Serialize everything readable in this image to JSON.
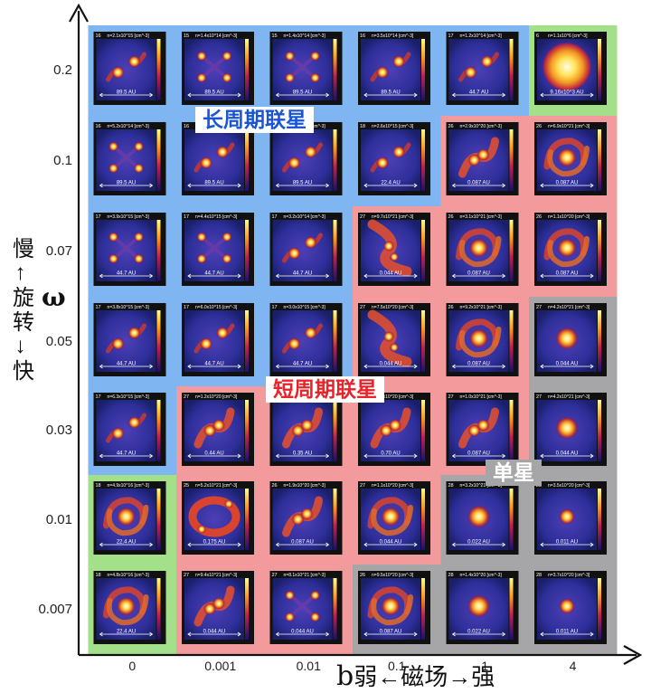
{
  "axes": {
    "y_title": "慢←旋转→快",
    "y_symbol": "ω",
    "x_title": "弱←磁场→强",
    "x_symbol": "b",
    "y_ticks": [
      "0.2",
      "0.1",
      "0.07",
      "0.05",
      "0.03",
      "0.01",
      "0.007"
    ],
    "x_ticks": [
      "0",
      "0.001",
      "0.01",
      "0.1",
      "1",
      "4"
    ]
  },
  "regions": {
    "long_period": {
      "label": "长周期联星",
      "color": "#1a55d6",
      "fill": "#7fb6f2"
    },
    "short_period": {
      "label": "短周期联星",
      "color": "#e8242a",
      "fill": "#f39a9c"
    },
    "single": {
      "label": "单星",
      "color": "#ffffff",
      "fill": "#a6a6a8"
    },
    "other": {
      "fill": "#a4df8a"
    }
  },
  "grid": [
    {
      "row": "0.2",
      "cells": [
        {
          "region": "long_period",
          "morph": "binary-long",
          "num": "16",
          "density": "n=2.1x10^15 [cm^-3]",
          "scale": "89.5 AU"
        },
        {
          "region": "long_period",
          "morph": "multiple",
          "num": "15",
          "density": "n=1.4x10^14 [cm^-3]",
          "scale": "89.5 AU"
        },
        {
          "region": "long_period",
          "morph": "multiple",
          "num": "15",
          "density": "n=1.4x10^14 [cm^-3]",
          "scale": "89.5 AU"
        },
        {
          "region": "long_period",
          "morph": "binary-long",
          "num": "16",
          "density": "n=3.5x10^14 [cm^-3]",
          "scale": "89.5 AU"
        },
        {
          "region": "long_period",
          "morph": "binary-long",
          "num": "17",
          "density": "n=1.2x10^14 [cm^-3]",
          "scale": "44.7 AU"
        },
        {
          "region": "other",
          "morph": "core-big",
          "num": "6",
          "density": "n=1.1x10^6 [cm^-3]",
          "scale": "9.16x10^3 AU"
        }
      ]
    },
    {
      "row": "0.1",
      "cells": [
        {
          "region": "long_period",
          "morph": "multiple",
          "num": "16",
          "density": "n=5.2x10^14 [cm^-3]",
          "scale": "89.5 AU"
        },
        {
          "region": "long_period",
          "morph": "binary-long",
          "num": "16",
          "density": "n=4.0x10^15 [cm^-3]",
          "scale": "89.5 AU"
        },
        {
          "region": "long_period",
          "morph": "binary-long",
          "num": "16",
          "density": "n=8.9x10^14 [cm^-3]",
          "scale": "89.5 AU"
        },
        {
          "region": "long_period",
          "morph": "binary-long",
          "num": "18",
          "density": "n=2.6x10^15 [cm^-3]",
          "scale": "22.4 AU"
        },
        {
          "region": "short_period",
          "morph": "binary-short",
          "num": "26",
          "density": "n=2.9x10^20 [cm^-3]",
          "scale": "0.087 AU"
        },
        {
          "region": "short_period",
          "morph": "spiral",
          "num": "26",
          "density": "n=6.9x10^21 [cm^-3]",
          "scale": "0.087 AU"
        }
      ]
    },
    {
      "row": "0.07",
      "cells": [
        {
          "region": "long_period",
          "morph": "multiple",
          "num": "17",
          "density": "n=3.9x10^15 [cm^-3]",
          "scale": "44.7 AU"
        },
        {
          "region": "long_period",
          "morph": "multiple",
          "num": "17",
          "density": "n=4.4x10^15 [cm^-3]",
          "scale": "44.7 AU"
        },
        {
          "region": "long_period",
          "morph": "binary-long",
          "num": "17",
          "density": "n=3.2x10^14 [cm^-3]",
          "scale": "44.7 AU"
        },
        {
          "region": "short_period",
          "morph": "filament",
          "num": "27",
          "density": "n=9.7x10^21 [cm^-3]",
          "scale": "0.044 AU"
        },
        {
          "region": "short_period",
          "morph": "spiral",
          "num": "26",
          "density": "n=3.1x10^21 [cm^-3]",
          "scale": "0.087 AU"
        },
        {
          "region": "short_period",
          "morph": "spiral",
          "num": "26",
          "density": "n=1.1x10^20 [cm^-3]",
          "scale": "0.087 AU"
        }
      ]
    },
    {
      "row": "0.05",
      "cells": [
        {
          "region": "long_period",
          "morph": "binary-long",
          "num": "17",
          "density": "n=3.8x10^15 [cm^-3]",
          "scale": "44.7 AU"
        },
        {
          "region": "long_period",
          "morph": "binary-long",
          "num": "17",
          "density": "n=6.0x10^15 [cm^-3]",
          "scale": "44.7 AU"
        },
        {
          "region": "long_period",
          "morph": "binary-long",
          "num": "17",
          "density": "n=3.0x10^15 [cm^-3]",
          "scale": "44.7 AU"
        },
        {
          "region": "short_period",
          "morph": "filament",
          "num": "27",
          "density": "n=7.5x10^20 [cm^-3]",
          "scale": "0.044 AU"
        },
        {
          "region": "short_period",
          "morph": "spiral",
          "num": "26",
          "density": "n=9.2x10^21 [cm^-3]",
          "scale": "0.087 AU"
        },
        {
          "region": "single",
          "morph": "core",
          "num": "27",
          "density": "n=4.2x10^21 [cm^-3]",
          "scale": "0.044 AU"
        }
      ]
    },
    {
      "row": "0.03",
      "cells": [
        {
          "region": "long_period",
          "morph": "binary-long",
          "num": "17",
          "density": "n=6.3x10^15 [cm^-3]",
          "scale": "44.7 AU"
        },
        {
          "region": "short_period",
          "morph": "binary-short",
          "num": "27",
          "density": "n=1.2x10^20 [cm^-3]",
          "scale": "0.44 AU"
        },
        {
          "region": "short_period",
          "morph": "binary-short",
          "num": "27",
          "density": "n=1.0x10^20 [cm^-3]",
          "scale": "0.35 AU"
        },
        {
          "region": "short_period",
          "morph": "binary-short",
          "num": "27",
          "density": "n=3.6x10^20 [cm^-3]",
          "scale": "0.70 AU"
        },
        {
          "region": "short_period",
          "morph": "binary-short",
          "num": "27",
          "density": "n=1.0x10^21 [cm^-3]",
          "scale": "0.087 AU"
        },
        {
          "region": "single",
          "morph": "core",
          "num": "27",
          "density": "n=4.2x10^21 [cm^-3]",
          "scale": "0.044 AU"
        }
      ]
    },
    {
      "row": "0.01",
      "cells": [
        {
          "region": "other",
          "morph": "spiral",
          "num": "18",
          "density": "n=4.9x10^16 [cm^-3]",
          "scale": "22.4 AU"
        },
        {
          "region": "short_period",
          "morph": "ring",
          "num": "25",
          "density": "n=5.2x10^21 [cm^-3]",
          "scale": "0.175 AU"
        },
        {
          "region": "short_period",
          "morph": "binary-short",
          "num": "26",
          "density": "n=1.9x10^20 [cm^-3]",
          "scale": "0.087 AU"
        },
        {
          "region": "short_period",
          "morph": "spiral",
          "num": "27",
          "density": "n=1.1x10^20 [cm^-3]",
          "scale": "0.044 AU"
        },
        {
          "region": "single",
          "morph": "core",
          "num": "28",
          "density": "n=3.2x10^21 [cm^-3]",
          "scale": "0.022 AU"
        },
        {
          "region": "single",
          "morph": "core-small",
          "num": "28",
          "density": "n=3.5x10^20 [cm^-3]",
          "scale": "0.011 AU"
        }
      ]
    },
    {
      "row": "0.007",
      "cells": [
        {
          "region": "other",
          "morph": "spiral",
          "num": "18",
          "density": "n=4.8x10^16 [cm^-3]",
          "scale": "22.4 AU"
        },
        {
          "region": "short_period",
          "morph": "binary-short",
          "num": "27",
          "density": "n=9.4x10^21 [cm^-3]",
          "scale": "0.044 AU"
        },
        {
          "region": "short_period",
          "morph": "multiple",
          "num": "27",
          "density": "n=8.1x10^21 [cm^-3]",
          "scale": "0.044 AU"
        },
        {
          "region": "single",
          "morph": "spiral",
          "num": "26",
          "density": "n=9.5x10^20 [cm^-3]",
          "scale": "0.087 AU"
        },
        {
          "region": "single",
          "morph": "core",
          "num": "28",
          "density": "n=1.4x10^20 [cm^-3]",
          "scale": "0.022 AU"
        },
        {
          "region": "single",
          "morph": "core-small",
          "num": "28",
          "density": "n=3.7x10^20 [cm^-3]",
          "scale": "0.011 AU"
        }
      ]
    }
  ]
}
